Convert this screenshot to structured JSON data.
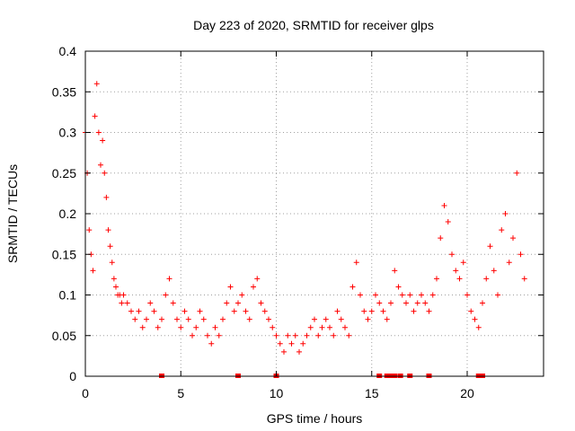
{
  "chart_data": {
    "type": "scatter",
    "title": "Day 223 of 2020, SRMTID for receiver glps",
    "xlabel": "GPS time / hours",
    "ylabel": "SRMTID / TECUs",
    "xlim": [
      0,
      24
    ],
    "ylim": [
      0,
      0.4
    ],
    "x_ticks": [
      0,
      5,
      10,
      15,
      20
    ],
    "x_tick_labels": [
      "0",
      "5",
      "10",
      "15",
      "20"
    ],
    "y_ticks": [
      0,
      0.05,
      0.1,
      0.15,
      0.2,
      0.25,
      0.3,
      0.35,
      0.4
    ],
    "y_tick_labels": [
      "0",
      "0.05",
      "0.1",
      "0.15",
      "0.2",
      "0.25",
      "0.3",
      "0.35",
      "0.4"
    ],
    "grid": true,
    "marker": "plus",
    "color": "#ff0000",
    "series": [
      {
        "name": "SRMTID",
        "x": [
          0.0,
          0.1,
          0.2,
          0.3,
          0.4,
          0.5,
          0.6,
          0.7,
          0.8,
          0.9,
          1.0,
          1.1,
          1.2,
          1.3,
          1.4,
          1.5,
          1.6,
          1.7,
          1.8,
          1.9,
          2.0,
          2.2,
          2.4,
          2.6,
          2.8,
          3.0,
          3.2,
          3.4,
          3.6,
          3.8,
          4.0,
          4.2,
          4.4,
          4.6,
          4.8,
          5.0,
          5.2,
          5.4,
          5.6,
          5.8,
          6.0,
          6.2,
          6.4,
          6.6,
          6.8,
          7.0,
          7.2,
          7.4,
          7.6,
          7.8,
          8.0,
          8.2,
          8.4,
          8.6,
          8.8,
          9.0,
          9.2,
          9.4,
          9.6,
          9.8,
          10.0,
          10.2,
          10.4,
          10.6,
          10.8,
          11.0,
          11.2,
          11.4,
          11.6,
          11.8,
          12.0,
          12.2,
          12.4,
          12.6,
          12.8,
          13.0,
          13.2,
          13.4,
          13.6,
          13.8,
          14.0,
          14.2,
          14.4,
          14.6,
          14.8,
          15.0,
          15.2,
          15.4,
          15.6,
          15.8,
          16.0,
          16.2,
          16.4,
          16.6,
          16.8,
          17.0,
          17.2,
          17.4,
          17.6,
          17.8,
          18.0,
          18.2,
          18.4,
          18.6,
          18.8,
          19.0,
          19.2,
          19.4,
          19.6,
          19.8,
          20.0,
          20.2,
          20.4,
          20.6,
          20.8,
          21.0,
          21.2,
          21.4,
          21.6,
          21.8,
          22.0,
          22.2,
          22.4,
          22.6,
          22.8,
          23.0
        ],
        "y": [
          0.3,
          0.25,
          0.18,
          0.15,
          0.13,
          0.32,
          0.36,
          0.3,
          0.26,
          0.29,
          0.25,
          0.22,
          0.18,
          0.16,
          0.14,
          0.12,
          0.11,
          0.1,
          0.1,
          0.09,
          0.1,
          0.09,
          0.08,
          0.07,
          0.08,
          0.06,
          0.07,
          0.09,
          0.08,
          0.06,
          0.07,
          0.1,
          0.12,
          0.09,
          0.07,
          0.06,
          0.08,
          0.07,
          0.05,
          0.06,
          0.08,
          0.07,
          0.05,
          0.04,
          0.06,
          0.05,
          0.07,
          0.09,
          0.11,
          0.08,
          0.09,
          0.1,
          0.08,
          0.07,
          0.11,
          0.12,
          0.09,
          0.08,
          0.07,
          0.06,
          0.05,
          0.04,
          0.03,
          0.05,
          0.04,
          0.05,
          0.03,
          0.04,
          0.05,
          0.06,
          0.07,
          0.05,
          0.06,
          0.07,
          0.06,
          0.05,
          0.08,
          0.07,
          0.06,
          0.05,
          0.11,
          0.14,
          0.1,
          0.08,
          0.07,
          0.08,
          0.1,
          0.09,
          0.08,
          0.07,
          0.09,
          0.13,
          0.11,
          0.1,
          0.09,
          0.1,
          0.08,
          0.09,
          0.1,
          0.09,
          0.08,
          0.1,
          0.12,
          0.17,
          0.21,
          0.19,
          0.15,
          0.13,
          0.12,
          0.14,
          0.1,
          0.08,
          0.07,
          0.06,
          0.09,
          0.12,
          0.16,
          0.13,
          0.1,
          0.18,
          0.2,
          0.14,
          0.17,
          0.25,
          0.15,
          0.12
        ]
      }
    ],
    "outages_x": [
      4.0,
      8.0,
      10.0,
      15.4,
      15.8,
      16.0,
      16.2,
      16.5,
      17.0,
      18.0,
      20.6,
      20.8
    ]
  }
}
